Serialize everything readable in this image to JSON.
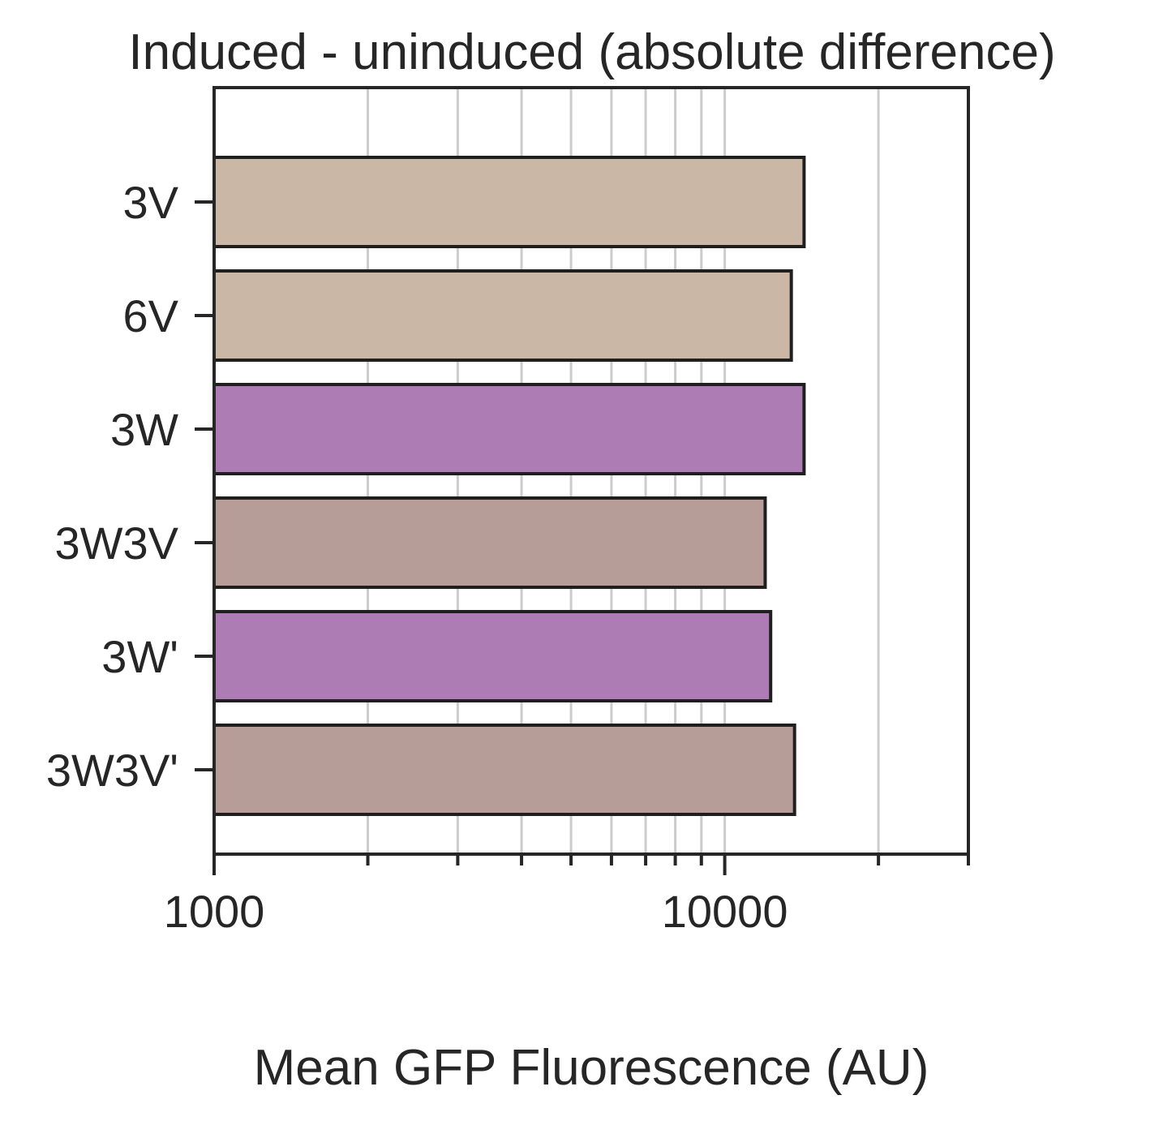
{
  "chart_data": {
    "type": "bar",
    "orientation": "horizontal",
    "title": "Induced - uninduced (absolute difference)",
    "xlabel": "Mean GFP Fluorescence (AU)",
    "ylabel": "",
    "x_scale": "log",
    "xlim": [
      1000,
      30000
    ],
    "x_ticks": [
      1000,
      10000
    ],
    "x_tick_labels": [
      "1000",
      "10000"
    ],
    "grid": "vertical",
    "categories": [
      "3V",
      "6V",
      "3W",
      "3W3V",
      "3W'",
      "3W3V'"
    ],
    "values": [
      14300,
      13500,
      14300,
      12000,
      12300,
      13700
    ],
    "colors": [
      "#cbb7a6",
      "#cbb7a6",
      "#ae7cb4",
      "#b79d98",
      "#ae7cb4",
      "#b79d98"
    ]
  },
  "colors": {
    "axis": "#262626",
    "grid": "#cccccc",
    "bar_edge": "#1f1f1f"
  }
}
